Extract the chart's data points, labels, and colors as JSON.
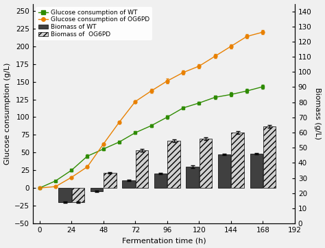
{
  "x_line": [
    0,
    12,
    24,
    36,
    48,
    60,
    72,
    84,
    96,
    108,
    120,
    132,
    144,
    156,
    168
  ],
  "glucose_WT": [
    0,
    10,
    25,
    45,
    55,
    65,
    78,
    88,
    100,
    113,
    120,
    128,
    132,
    137,
    143
  ],
  "glucose_OG6PD": [
    0,
    2,
    15,
    30,
    62,
    93,
    122,
    137,
    151,
    163,
    172,
    186,
    200,
    214,
    220
  ],
  "glucose_WT_err": [
    0,
    1,
    2,
    2,
    2,
    2,
    2,
    2,
    2,
    2,
    2,
    2,
    3,
    3,
    3
  ],
  "glucose_OG6PD_err": [
    0,
    1,
    1,
    2,
    2,
    2,
    2,
    3,
    3,
    3,
    3,
    3,
    3,
    3,
    3
  ],
  "bar_x": [
    24,
    48,
    72,
    96,
    120,
    144,
    168
  ],
  "biomass_WT": [
    -20,
    -5,
    11,
    20,
    30,
    47,
    48
  ],
  "biomass_OG6PD": [
    -20,
    21,
    53,
    67,
    70,
    78,
    87
  ],
  "biomass_WT_err": [
    1,
    1,
    1,
    1,
    2,
    1,
    1
  ],
  "biomass_OG6PD_err": [
    1,
    1,
    2,
    2,
    2,
    2,
    2
  ],
  "xticks": [
    0,
    24,
    48,
    72,
    96,
    120,
    144,
    168,
    192
  ],
  "ylim_left": [
    -50,
    260
  ],
  "ylim_right": [
    0,
    145
  ],
  "yticks_left": [
    -50,
    -25,
    0,
    25,
    50,
    75,
    100,
    125,
    150,
    175,
    200,
    225,
    250
  ],
  "yticks_right": [
    0,
    10,
    20,
    30,
    40,
    50,
    60,
    70,
    80,
    90,
    100,
    110,
    120,
    130,
    140
  ],
  "color_WT_line": "#2e8b00",
  "color_OG6PD_line": "#e88000",
  "color_WT_bar": "#404040",
  "xlabel": "Fermentation time (h)",
  "ylabel_left": "Glucose consumption (g/L)",
  "ylabel_right": "Biomass (g/L)",
  "legend_labels": [
    "Glucose consumption of WT",
    "Glucose consumption of OG6PD",
    "Biomass of WT",
    "Biomass of  OG6PD"
  ],
  "bar_width": 9.5,
  "bar_gap": 0.5,
  "background_color": "#f0f0f0",
  "figsize": [
    4.74,
    3.63
  ],
  "dpi": 100
}
